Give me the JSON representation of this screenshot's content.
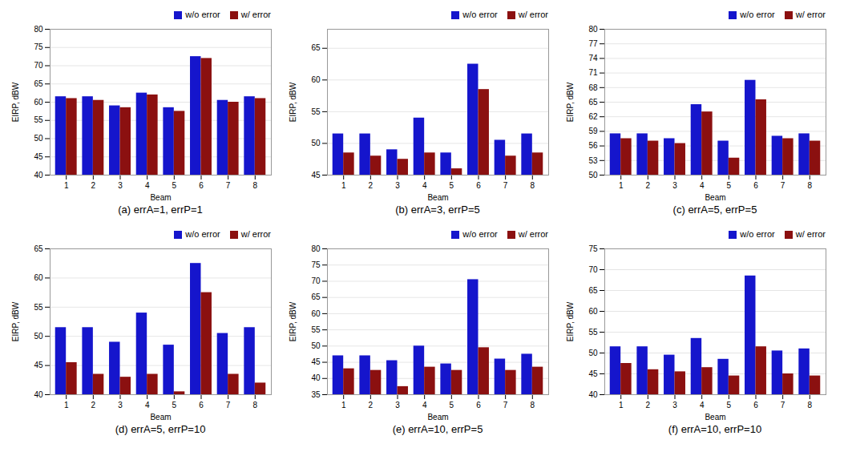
{
  "chart_data": [
    {
      "type": "bar",
      "title": "(a)  errA=1,  errP=1",
      "xlabel": "Beam",
      "ylabel": "EIRP, dBW",
      "categories": [
        "1",
        "2",
        "3",
        "4",
        "5",
        "6",
        "7",
        "8"
      ],
      "series": [
        {
          "name": "w/o error",
          "color": "#1515CC",
          "values": [
            61.5,
            61.5,
            59.0,
            62.5,
            58.5,
            72.5,
            60.5,
            61.5
          ]
        },
        {
          "name": "w/ error",
          "color": "#8B1010",
          "values": [
            61.0,
            60.5,
            58.5,
            62.0,
            57.5,
            72.0,
            60.0,
            61.0
          ]
        }
      ],
      "ylim": [
        40,
        80
      ],
      "yticks": [
        40,
        45,
        50,
        55,
        60,
        65,
        70,
        75,
        80
      ],
      "grid": true,
      "legend": "upper right"
    },
    {
      "type": "bar",
      "title": "(b)  errA=3,  errP=5",
      "xlabel": "Beam",
      "ylabel": "EIRP, dBW",
      "categories": [
        "1",
        "2",
        "3",
        "4",
        "5",
        "6",
        "7",
        "8"
      ],
      "series": [
        {
          "name": "w/o error",
          "color": "#1515CC",
          "values": [
            51.5,
            51.5,
            49.0,
            54.0,
            48.5,
            62.5,
            50.5,
            51.5
          ]
        },
        {
          "name": "w/ error",
          "color": "#8B1010",
          "values": [
            48.5,
            48.0,
            47.5,
            48.5,
            46.0,
            58.5,
            48.0,
            48.5
          ]
        }
      ],
      "ylim": [
        45,
        68
      ],
      "yticks": [
        45,
        50,
        55,
        60,
        65
      ],
      "grid": true,
      "legend": "upper right"
    },
    {
      "type": "bar",
      "title": "(c)  errA=5,  errP=5",
      "xlabel": "Beam",
      "ylabel": "EIRP, dBW",
      "categories": [
        "1",
        "2",
        "3",
        "4",
        "5",
        "6",
        "7",
        "8"
      ],
      "series": [
        {
          "name": "w/o error",
          "color": "#1515CC",
          "values": [
            58.5,
            58.5,
            57.5,
            64.5,
            57.0,
            69.5,
            58.0,
            58.5
          ]
        },
        {
          "name": "w/ error",
          "color": "#8B1010",
          "values": [
            57.5,
            57.0,
            56.5,
            63.0,
            53.5,
            65.5,
            57.5,
            57.0
          ]
        }
      ],
      "ylim": [
        50,
        80
      ],
      "yticks": [
        50,
        53,
        56,
        59,
        62,
        65,
        68,
        71,
        74,
        77,
        80
      ],
      "grid": true,
      "legend": "upper right"
    },
    {
      "type": "bar",
      "title": "(d)  errA=5,  errP=10",
      "xlabel": "Beam",
      "ylabel": "EIRP, dBW",
      "categories": [
        "1",
        "2",
        "3",
        "4",
        "5",
        "6",
        "7",
        "8"
      ],
      "series": [
        {
          "name": "w/o error",
          "color": "#1515CC",
          "values": [
            51.5,
            51.5,
            49.0,
            54.0,
            48.5,
            62.5,
            50.5,
            51.5
          ]
        },
        {
          "name": "w/ error",
          "color": "#8B1010",
          "values": [
            45.5,
            43.5,
            43.0,
            43.5,
            40.5,
            57.5,
            43.5,
            42.0
          ]
        }
      ],
      "ylim": [
        40,
        65
      ],
      "yticks": [
        40,
        45,
        50,
        55,
        60,
        65
      ],
      "grid": true,
      "legend": "upper right"
    },
    {
      "type": "bar",
      "title": "(e)  errA=10,  errP=5",
      "xlabel": "Beam",
      "ylabel": "EIRP, dBW",
      "categories": [
        "1",
        "2",
        "3",
        "4",
        "5",
        "6",
        "7",
        "8"
      ],
      "series": [
        {
          "name": "w/o error",
          "color": "#1515CC",
          "values": [
            47.0,
            47.0,
            45.5,
            50.0,
            44.5,
            70.5,
            46.0,
            47.5
          ]
        },
        {
          "name": "w/ error",
          "color": "#8B1010",
          "values": [
            43.0,
            42.5,
            37.5,
            43.5,
            42.5,
            49.5,
            42.5,
            43.5
          ]
        }
      ],
      "ylim": [
        35,
        80
      ],
      "yticks": [
        35,
        40,
        45,
        50,
        55,
        60,
        65,
        70,
        75,
        80
      ],
      "grid": true,
      "legend": "upper right"
    },
    {
      "type": "bar",
      "title": "(f)  errA=10,  errP=10",
      "xlabel": "Beam",
      "ylabel": "EIRP, dBW",
      "categories": [
        "1",
        "2",
        "3",
        "4",
        "5",
        "6",
        "7",
        "8"
      ],
      "series": [
        {
          "name": "w/o error",
          "color": "#1515CC",
          "values": [
            51.5,
            51.5,
            49.5,
            53.5,
            48.5,
            68.5,
            50.5,
            51.0
          ]
        },
        {
          "name": "w/ error",
          "color": "#8B1010",
          "values": [
            47.5,
            46.0,
            45.5,
            46.5,
            44.5,
            51.5,
            45.0,
            44.5
          ]
        }
      ],
      "ylim": [
        40,
        75
      ],
      "yticks": [
        40,
        45,
        50,
        55,
        60,
        65,
        70,
        75
      ],
      "grid": true,
      "legend": "upper right"
    }
  ]
}
